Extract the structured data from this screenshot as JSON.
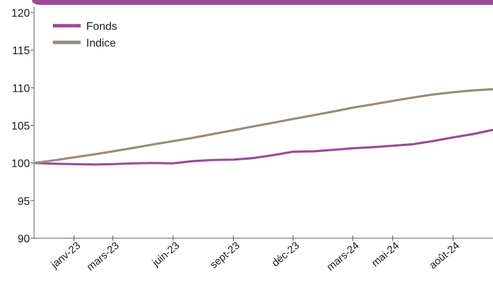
{
  "chart_data": {
    "type": "line",
    "x": [
      "2022-11-01",
      "2022-12-01",
      "2023-01-01",
      "2023-02-01",
      "2023-03-01",
      "2023-04-01",
      "2023-05-01",
      "2023-06-01",
      "2023-07-01",
      "2023-08-01",
      "2023-09-01",
      "2023-10-01",
      "2023-11-01",
      "2023-12-01",
      "2024-01-01",
      "2024-02-01",
      "2024-03-01",
      "2024-04-01",
      "2024-05-01",
      "2024-06-01",
      "2024-07-01",
      "2024-08-01",
      "2024-09-01",
      "2024-10-01"
    ],
    "series": [
      {
        "name": "Fonds",
        "color": "#9b4a98",
        "values": [
          100.0,
          99.9,
          99.85,
          99.8,
          99.85,
          99.95,
          100.0,
          99.95,
          100.25,
          100.4,
          100.45,
          100.65,
          101.05,
          101.5,
          101.55,
          101.75,
          101.95,
          102.1,
          102.3,
          102.5,
          102.9,
          103.4,
          103.85,
          104.4
        ]
      },
      {
        "name": "Indice",
        "color": "#9a8b7c",
        "values": [
          100.0,
          100.35,
          100.75,
          101.15,
          101.55,
          102.0,
          102.45,
          102.9,
          103.35,
          103.85,
          104.35,
          104.85,
          105.35,
          105.85,
          106.35,
          106.85,
          107.35,
          107.8,
          108.25,
          108.7,
          109.1,
          109.4,
          109.65,
          109.8
        ]
      }
    ],
    "x_ticks": [
      "janv-23",
      "mars-23",
      "juin-23",
      "sept-23",
      "déc-23",
      "mars-24",
      "mai-24",
      "août-24"
    ],
    "x_tick_dates": [
      "2023-01-01",
      "2023-03-01",
      "2023-06-01",
      "2023-09-01",
      "2023-12-01",
      "2024-03-01",
      "2024-05-01",
      "2024-08-01"
    ],
    "x_range": [
      "2022-11-01",
      "2024-10-01"
    ],
    "y_ticks": [
      90,
      95,
      100,
      105,
      110,
      115,
      120
    ],
    "ylim": [
      90,
      120
    ],
    "title": "",
    "xlabel": "",
    "ylabel": "",
    "grid": false,
    "legend_position": "top-left",
    "top_band_color": "#9b4a98"
  }
}
